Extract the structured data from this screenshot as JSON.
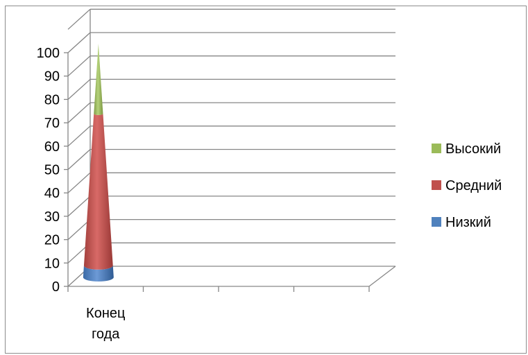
{
  "chart_data": {
    "type": "bar",
    "subtype": "3d-stacked-cone",
    "categories": [
      "Конец года"
    ],
    "series": [
      {
        "name": "Низкий",
        "values": [
          5
        ],
        "color": "#4f81bd"
      },
      {
        "name": "Средний",
        "values": [
          65
        ],
        "color": "#c0504d"
      },
      {
        "name": "Высокий",
        "values": [
          30
        ],
        "color": "#9bbb59"
      }
    ],
    "ylim": [
      0,
      100
    ],
    "yticks": [
      0,
      10,
      20,
      30,
      40,
      50,
      60,
      70,
      80,
      90,
      100
    ],
    "category_slots": 4,
    "grid": true,
    "legend_position": "right",
    "legend_order": [
      "Высокий",
      "Средний",
      "Низкий"
    ]
  }
}
